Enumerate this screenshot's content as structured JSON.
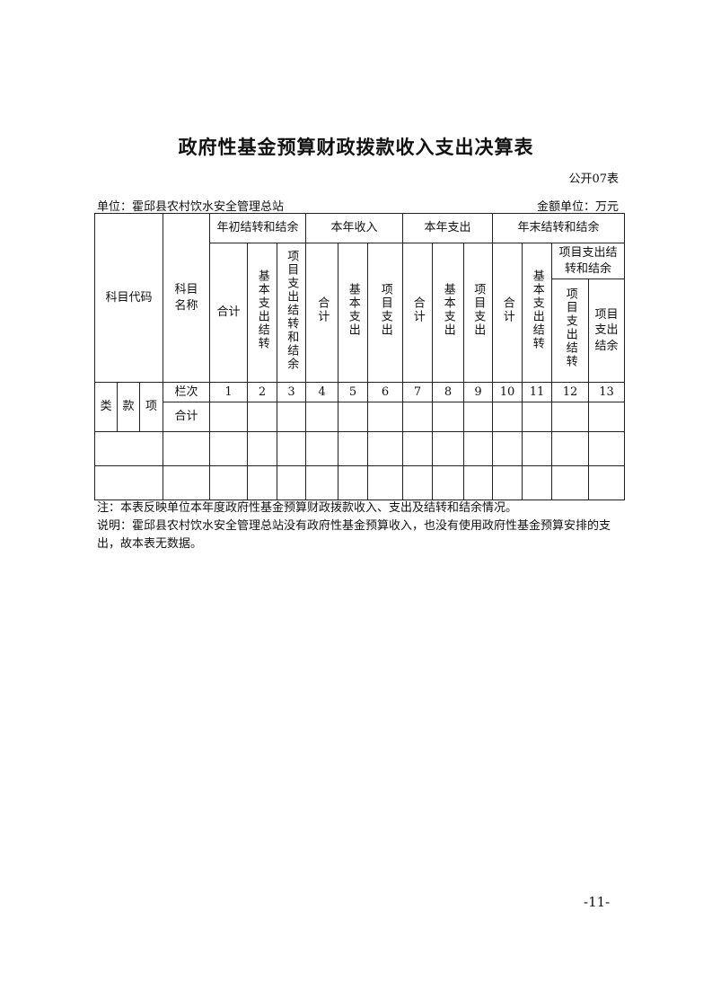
{
  "title": "政府性基金预算财政拨款收入支出决算表",
  "table_no": "公开07表",
  "unit": "单位：霍邱县农村饮水安全管理总站",
  "amount_unit": "金额单位：万元",
  "header": {
    "code": "科目代码",
    "name": "科目名称",
    "g1": "年初结转和结余",
    "g2": "本年收入",
    "g3": "本年支出",
    "g4": "年末结转和结余",
    "total": "合计",
    "basic_carry": "基本支出结转",
    "proj_carry_bal": "项目支出结转和结余",
    "basic": "基本支出",
    "proj": "项目支出",
    "proj_carry": "项目支出结转",
    "proj_bal": "项目支出结余",
    "lei": "类",
    "kuan": "款",
    "xiang": "项",
    "col_no": "栏次",
    "sum": "合计"
  },
  "col_numbers": [
    "1",
    "2",
    "3",
    "4",
    "5",
    "6",
    "7",
    "8",
    "9",
    "10",
    "11",
    "12",
    "13"
  ],
  "notes": [
    "注：本表反映单位本年度政府性基金预算财政拨款收入、支出及结转和结余情况。",
    "说明：霍邱县农村饮水安全管理总站没有政府性基金预算收入，也没有使用政府性基金预算安排的支出，故本表无数据。"
  ],
  "page_number": "-11-"
}
